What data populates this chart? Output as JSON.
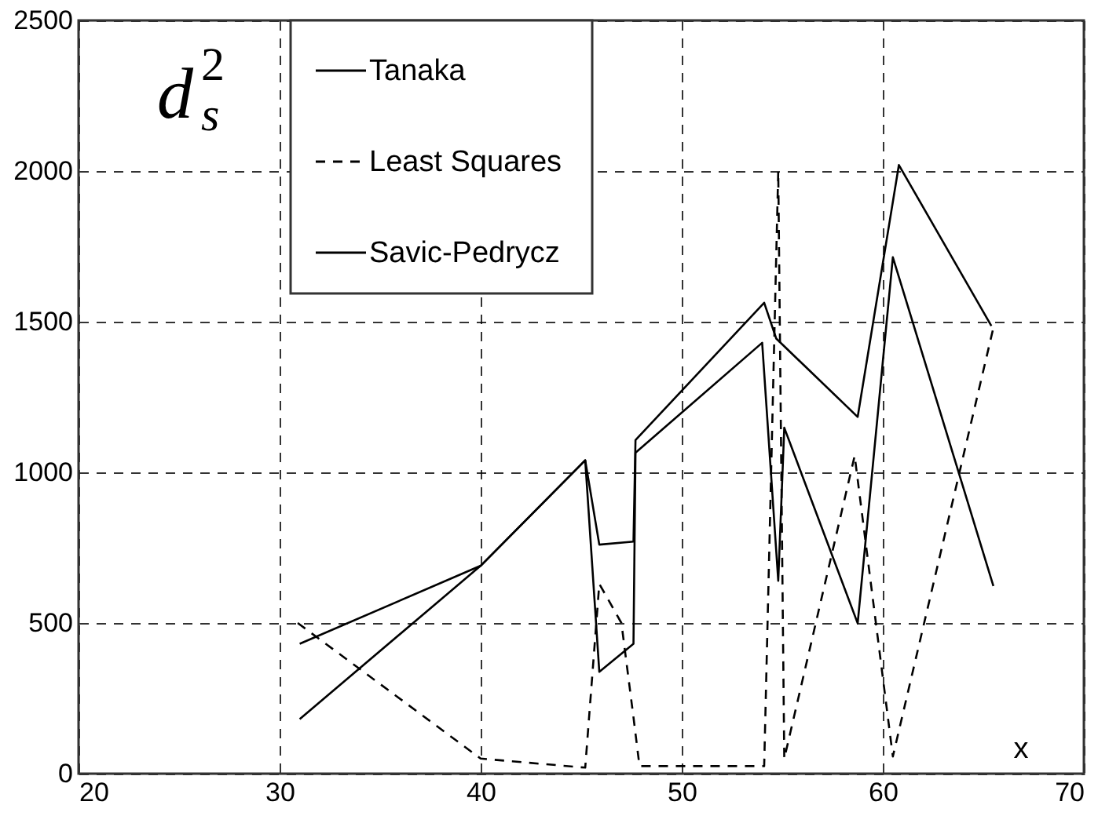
{
  "chart_data": {
    "type": "line",
    "xlabel": "x",
    "ylabel": "d$_{s}$$^{2}$",
    "xlim": [
      20,
      70
    ],
    "xticks": [
      20,
      30,
      40,
      50,
      60,
      70
    ],
    "ylim": [
      0,
      2500
    ],
    "yticks": [
      0,
      500,
      1000,
      1500,
      2000,
      2500
    ],
    "grid": true,
    "legend": "top left",
    "series": [
      {
        "name": "Tanaka",
        "color": "#000000",
        "line_style": "solid",
        "x": [
          31.0,
          40.0,
          45.2,
          45.9,
          47.6,
          47.7,
          54.1,
          54.7,
          58.75,
          60.8,
          65.4
        ],
        "values": [
          431,
          690,
          1040,
          760,
          770,
          1107,
          1563,
          1444,
          1184,
          2020,
          1486
        ]
      },
      {
        "name": "Least Squares",
        "color": "#000000",
        "line_style": "dashed",
        "x": [
          30.9,
          40.0,
          45.2,
          45.9,
          47.0,
          47.6,
          47.9,
          54.1,
          54.8,
          55.1,
          58.6,
          60.5,
          65.5
        ],
        "values": [
          500,
          50,
          20,
          630,
          500,
          187,
          25,
          25,
          2000,
          50,
          1055,
          57,
          1480
        ]
      },
      {
        "name": "Savic-Pedrycz",
        "color": "#000000",
        "line_style": "solid",
        "x": [
          31.0,
          40.0,
          45.2,
          45.9,
          47.6,
          47.7,
          54.0,
          54.8,
          55.1,
          58.75,
          60.5,
          65.5
        ],
        "values": [
          181,
          690,
          1040,
          338,
          431,
          1065,
          1430,
          640,
          1148,
          499,
          1714,
          623
        ]
      }
    ]
  }
}
